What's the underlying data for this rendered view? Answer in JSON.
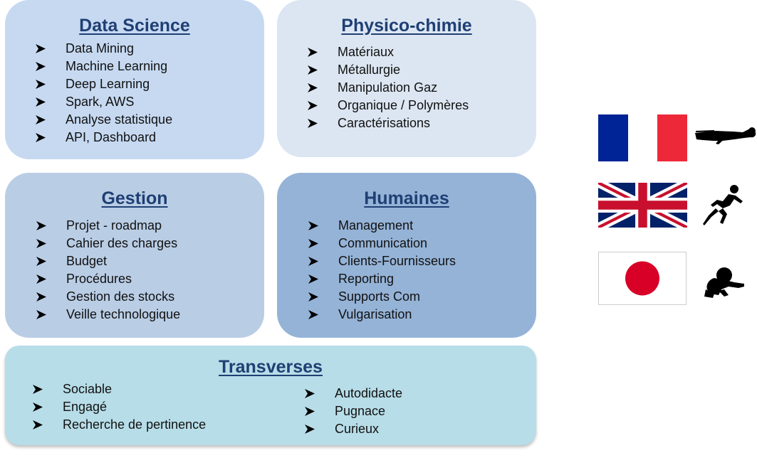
{
  "boxes": {
    "data_science": {
      "title": "Data Science",
      "items": [
        "Data Mining",
        "Machine Learning",
        "Deep Learning",
        "Spark, AWS",
        "Analyse statistique",
        "API, Dashboard"
      ]
    },
    "physico_chimie": {
      "title": "Physico-chimie",
      "items": [
        "Matériaux",
        "Métallurgie",
        "Manipulation Gaz",
        "Organique / Polymères",
        "Caractérisations"
      ]
    },
    "gestion": {
      "title": "Gestion",
      "items": [
        "Projet - roadmap",
        "Cahier des charges",
        "Budget",
        "Procédures",
        "Gestion des stocks",
        "Veille technologique"
      ]
    },
    "humaines": {
      "title": "Humaines",
      "items": [
        "Management",
        "Communication",
        "Clients-Fournisseurs",
        "Reporting",
        "Supports Com",
        "Vulgarisation"
      ]
    },
    "transverses": {
      "title": "Transverses",
      "left_items": [
        "Sociable",
        "Engagé",
        "Recherche de pertinence"
      ],
      "right_items": [
        "Autodidacte",
        "Pugnace",
        "Curieux"
      ]
    }
  },
  "languages": [
    {
      "flag": "france-flag-icon",
      "level_icon": "swimmer-icon"
    },
    {
      "flag": "uk-flag-icon",
      "level_icon": "sprinter-icon"
    },
    {
      "flag": "japan-flag-icon",
      "level_icon": "crawling-baby-icon"
    }
  ],
  "colors": {
    "title": "#1f3f74",
    "data_science_bg": "#c6d9f1",
    "physico_chimie_bg": "#dce6f2",
    "gestion_bg": "#b9cde5",
    "humaines_bg": "#95b3d7",
    "transverses_bg": "#b7dde8"
  },
  "icons": {
    "bullet": "arrow-bullet-icon"
  }
}
